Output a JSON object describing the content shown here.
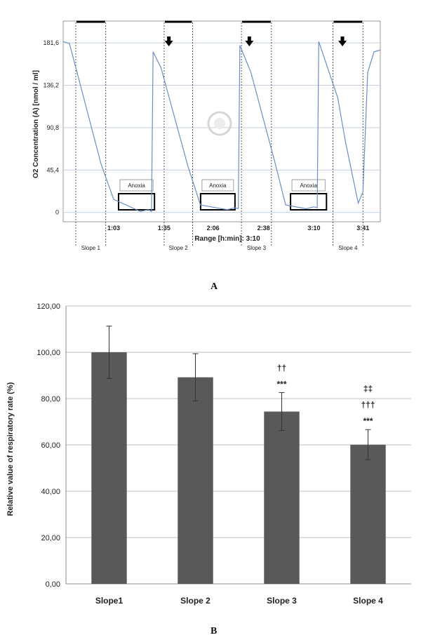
{
  "chart_data": [
    {
      "type": "line",
      "panel_label": "A",
      "ylabel": "O2 Concentration (A) [nmol / ml]",
      "xlabel": "Range [h:min]: 3:10",
      "y_ticks": [
        "0",
        "45,4",
        "90,8",
        "136,2",
        "181,6"
      ],
      "y_tick_values": [
        0,
        45.4,
        90.8,
        136.2,
        181.6
      ],
      "x_ticks": [
        "1:03",
        "1:35",
        "2:06",
        "2:38",
        "3:10",
        "3:41"
      ],
      "x_tick_minutes": [
        63,
        95,
        126,
        158,
        190,
        221
      ],
      "ylim": [
        -10,
        205
      ],
      "xlim": [
        31,
        232
      ],
      "grid": true,
      "line_color": "#6b8fc4",
      "series": [
        {
          "x": [
            31,
            35,
            55,
            63,
            80,
            85,
            87,
            88,
            93,
            110,
            118,
            135,
            140,
            142,
            143,
            150,
            165,
            172,
            185,
            190,
            192,
            193,
            205,
            210,
            218,
            221,
            224,
            228,
            232
          ],
          "y": [
            183,
            181,
            52,
            14,
            1,
            3,
            1,
            172,
            155,
            50,
            8,
            3,
            5,
            4,
            179,
            150,
            55,
            8,
            4,
            6,
            5,
            183,
            123,
            75,
            10,
            22,
            150,
            172,
            174
          ]
        }
      ],
      "slopes": [
        {
          "label": "Slope 1",
          "x_start": 39,
          "x_end": 58
        },
        {
          "label": "Slope 2",
          "x_start": 95,
          "x_end": 113
        },
        {
          "label": "Slope 3",
          "x_start": 144,
          "x_end": 163
        },
        {
          "label": "Slope 4",
          "x_start": 202,
          "x_end": 221
        }
      ],
      "anoxia": [
        {
          "label": "Anoxia",
          "x_start": 67,
          "x_end": 88
        },
        {
          "label": "Anoxia",
          "x_start": 119,
          "x_end": 139
        },
        {
          "label": "Anoxia",
          "x_start": 176,
          "x_end": 197
        }
      ],
      "reoxygenation_arrows_x": [
        98,
        149,
        208
      ]
    },
    {
      "type": "bar",
      "panel_label": "B",
      "ylabel": "Relative value of respiratory rate (%)",
      "xlabel": "",
      "categories": [
        "Slope1",
        "Slope 2",
        "Slope 3",
        "Slope 4"
      ],
      "values": [
        100.0,
        89.2,
        74.4,
        60.1
      ],
      "errors": [
        11.3,
        10.2,
        8.2,
        6.5
      ],
      "y_ticks": [
        "0,00",
        "20,00",
        "40,00",
        "60,00",
        "80,00",
        "100,00",
        "120,00"
      ],
      "ylim": [
        0,
        120
      ],
      "grid": true,
      "bar_color": "#595959",
      "significance": [
        [],
        [],
        [
          "††",
          "***"
        ],
        [
          "‡‡",
          "†††",
          "***"
        ]
      ]
    }
  ]
}
